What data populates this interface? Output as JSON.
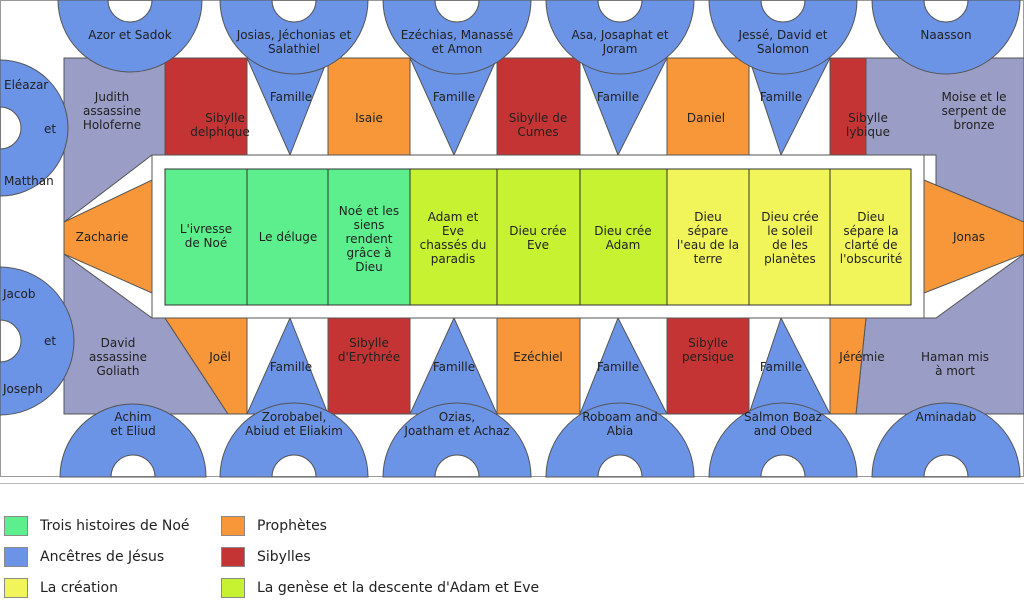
{
  "colors": {
    "noe": "#5def8d",
    "ancestors": "#6b93e6",
    "creation": "#f2f55a",
    "genesis": "#c6f232",
    "prophets": "#f7973a",
    "sibyls": "#c53434",
    "scenes": "#9a9dc6"
  },
  "ancestors": [
    {
      "lines": [
        "Azor et Sadok"
      ]
    },
    {
      "lines": [
        "Josias, Jéchonias et",
        "Salathiel"
      ]
    },
    {
      "lines": [
        "Ezéchias, Manassé",
        "et Amon"
      ]
    },
    {
      "lines": [
        "Asa, Josaphat et",
        "Joram"
      ]
    },
    {
      "lines": [
        "Jessé, David et",
        "Salomon"
      ]
    },
    {
      "lines": [
        "Naasson"
      ]
    },
    {
      "lines": [
        "Achim",
        "et Eliud"
      ]
    },
    {
      "lines": [
        "Zorobabel,",
        "Abiud et Eliakim"
      ]
    },
    {
      "lines": [
        "Ozias,",
        "Joatham et Achaz"
      ]
    },
    {
      "lines": [
        "Roboam and",
        "Abia"
      ]
    },
    {
      "lines": [
        "Salmon Boaz",
        "and Obed"
      ]
    },
    {
      "lines": [
        "Aminadab"
      ]
    },
    {
      "lines": [
        "Eléazar",
        "et",
        "Matthan"
      ]
    },
    {
      "lines": [
        "Jacob",
        "et",
        "Joseph"
      ]
    }
  ],
  "scenes": [
    {
      "lines": [
        "Judith",
        "assassine",
        "Holoferne"
      ]
    },
    {
      "lines": [
        "Moise et le",
        "serpent de",
        "bronze"
      ]
    },
    {
      "lines": [
        "David",
        "assassine",
        "Goliath"
      ]
    },
    {
      "lines": [
        "Haman mis",
        "à mort"
      ]
    }
  ],
  "seers": [
    {
      "lines": [
        "Sibylle",
        "delphique"
      ]
    },
    {
      "lines": [
        "Isaie"
      ]
    },
    {
      "lines": [
        "Sibylle de",
        "Cumes"
      ]
    },
    {
      "lines": [
        "Daniel"
      ]
    },
    {
      "lines": [
        "Sibylle",
        "lybique"
      ]
    },
    {
      "lines": [
        "Joël"
      ]
    },
    {
      "lines": [
        "Sibylle",
        "d'Erythrée"
      ]
    },
    {
      "lines": [
        "Ezéchiel"
      ]
    },
    {
      "lines": [
        "Sibylle",
        "persique"
      ]
    },
    {
      "lines": [
        "Jérémie"
      ]
    },
    {
      "lines": [
        "Zacharie"
      ]
    },
    {
      "lines": [
        "Jonas"
      ]
    }
  ],
  "family_label": "Famille",
  "panels": [
    {
      "lines": [
        "L'ivresse",
        "de Noé"
      ]
    },
    {
      "lines": [
        "Le déluge"
      ]
    },
    {
      "lines": [
        "Noé et les",
        "siens",
        "rendent",
        "grâce à",
        "Dieu"
      ]
    },
    {
      "lines": [
        "Adam et",
        "Eve",
        "chassés du",
        "paradis"
      ]
    },
    {
      "lines": [
        "Dieu crée",
        "Eve"
      ]
    },
    {
      "lines": [
        "Dieu crée",
        "Adam"
      ]
    },
    {
      "lines": [
        "Dieu",
        "sépare",
        "l'eau de la",
        "terre"
      ]
    },
    {
      "lines": [
        "Dieu crée",
        "le soleil",
        "de les",
        "planètes"
      ]
    },
    {
      "lines": [
        "Dieu",
        "sépare la",
        "clarté de",
        "l'obscurité"
      ]
    }
  ],
  "legend": [
    {
      "label": "Trois histoires de Noé",
      "color": "#5def8d"
    },
    {
      "label": "Prophètes",
      "color": "#f7973a"
    },
    {
      "label": "Ancêtres de Jésus",
      "color": "#6b93e6"
    },
    {
      "label": "Sibylles",
      "color": "#c53434"
    },
    {
      "label": "La création",
      "color": "#f2f55a"
    },
    {
      "label": "La genèse et la descente d'Adam et Eve",
      "color": "#c6f232"
    }
  ]
}
